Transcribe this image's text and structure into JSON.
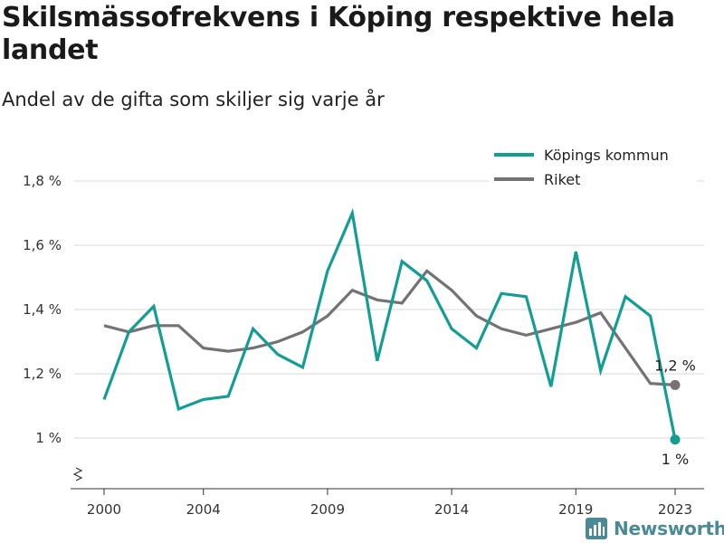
{
  "title": "Skilsmässofrekvens i Köping respektive hela landet",
  "subtitle": "Andel av de gifta som skiljer sig varje år",
  "brand": "Newsworthy",
  "chart_data": {
    "type": "line",
    "x": [
      2000,
      2001,
      2002,
      2003,
      2004,
      2005,
      2006,
      2007,
      2008,
      2009,
      2010,
      2011,
      2012,
      2013,
      2014,
      2015,
      2016,
      2017,
      2018,
      2019,
      2020,
      2021,
      2022,
      2023
    ],
    "x_ticks": [
      "2000",
      "2004",
      "2009",
      "2014",
      "2019",
      "2023"
    ],
    "y_ticks": [
      "1 %",
      "1,2 %",
      "1,4 %",
      "1,6 %",
      "1,8 %"
    ],
    "y_tick_values": [
      1.0,
      1.2,
      1.4,
      1.6,
      1.8
    ],
    "ylim": [
      0.85,
      1.85
    ],
    "axis_break": true,
    "legend_position": "top-right",
    "series": [
      {
        "name": "Köpings kommun",
        "color": "#139e94",
        "values": [
          1.12,
          1.33,
          1.41,
          1.09,
          1.12,
          1.13,
          1.34,
          1.26,
          1.22,
          1.52,
          1.7,
          1.24,
          1.55,
          1.49,
          1.34,
          1.28,
          1.45,
          1.44,
          1.16,
          1.58,
          1.21,
          1.44,
          1.38,
          0.995
        ],
        "end_label": "1 %"
      },
      {
        "name": "Riket",
        "color": "#747274",
        "values": [
          1.35,
          1.33,
          1.35,
          1.35,
          1.28,
          1.27,
          1.28,
          1.3,
          1.33,
          1.38,
          1.46,
          1.43,
          1.42,
          1.52,
          1.46,
          1.38,
          1.34,
          1.32,
          1.34,
          1.36,
          1.39,
          1.28,
          1.17,
          1.165
        ],
        "end_label": "1,2 %"
      }
    ]
  }
}
